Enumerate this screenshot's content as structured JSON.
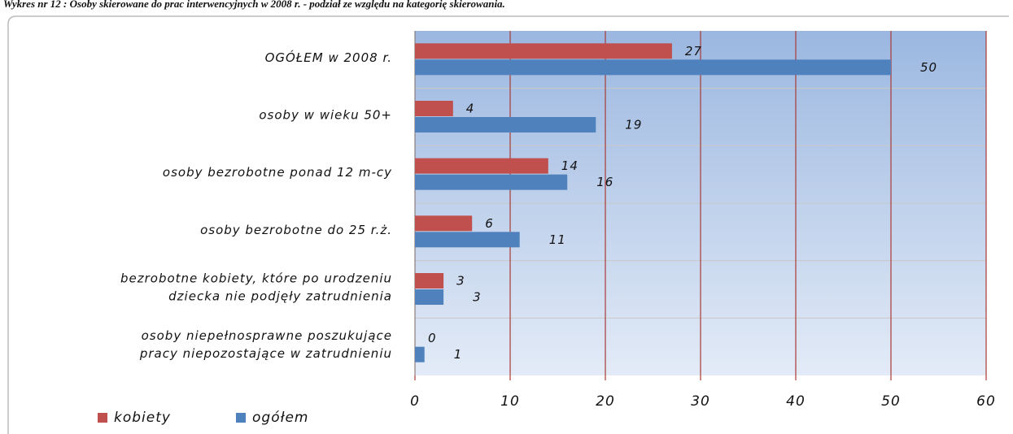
{
  "chart_data": {
    "type": "bar",
    "orientation": "horizontal",
    "title": "Wykres nr 12 : Osoby skierowane do prac interwencyjnych w 2008 r. - podział ze względu na kategorię skierowania.",
    "categories": [
      [
        "OGÓŁEM w 2008 r."
      ],
      [
        "osoby w wieku 50+"
      ],
      [
        "osoby bezrobotne ponad 12 m-cy"
      ],
      [
        "osoby bezrobotne do 25 r.ż."
      ],
      [
        "bezrobotne kobiety, które po urodzeniu",
        "dziecka nie podjęły zatrudnienia"
      ],
      [
        "osoby niepełnosprawne poszukujące",
        "pracy niepozostające w zatrudnieniu"
      ]
    ],
    "series": [
      {
        "name": "kobiety",
        "color": "#c0504d",
        "values": [
          27,
          4,
          14,
          6,
          3,
          0
        ]
      },
      {
        "name": "ogółem",
        "color": "#4f81bd",
        "values": [
          50,
          19,
          16,
          11,
          3,
          1
        ]
      }
    ],
    "xlim": [
      0,
      60
    ],
    "xticks": [
      0,
      10,
      20,
      30,
      40,
      50,
      60
    ],
    "grid": true,
    "legend": "bottom"
  }
}
